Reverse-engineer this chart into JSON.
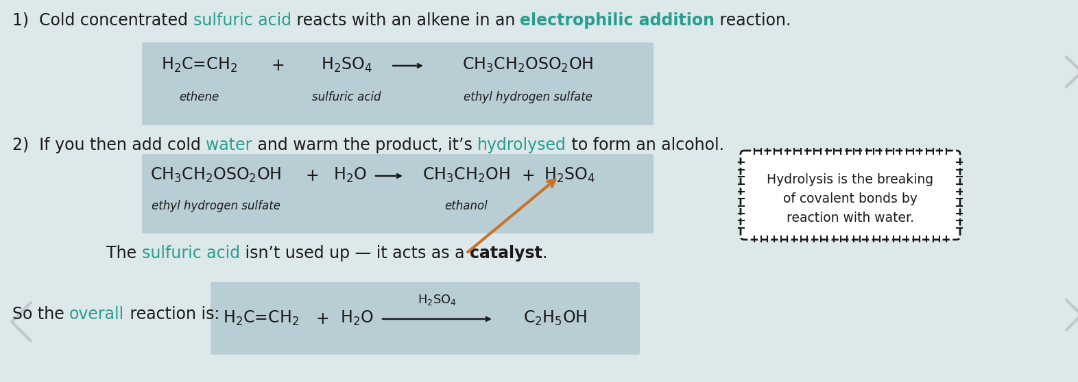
{
  "bg_color": "#dde8eb",
  "box_color": "#b8ced4",
  "text_color": "#1a1a1a",
  "teal_color": "#2a9d8f",
  "arrow_color": "#c8732a",
  "note_line1": "Hydrolysis is the breaking",
  "note_line2": "of covalent bonds by",
  "note_line3": "reaction with water."
}
